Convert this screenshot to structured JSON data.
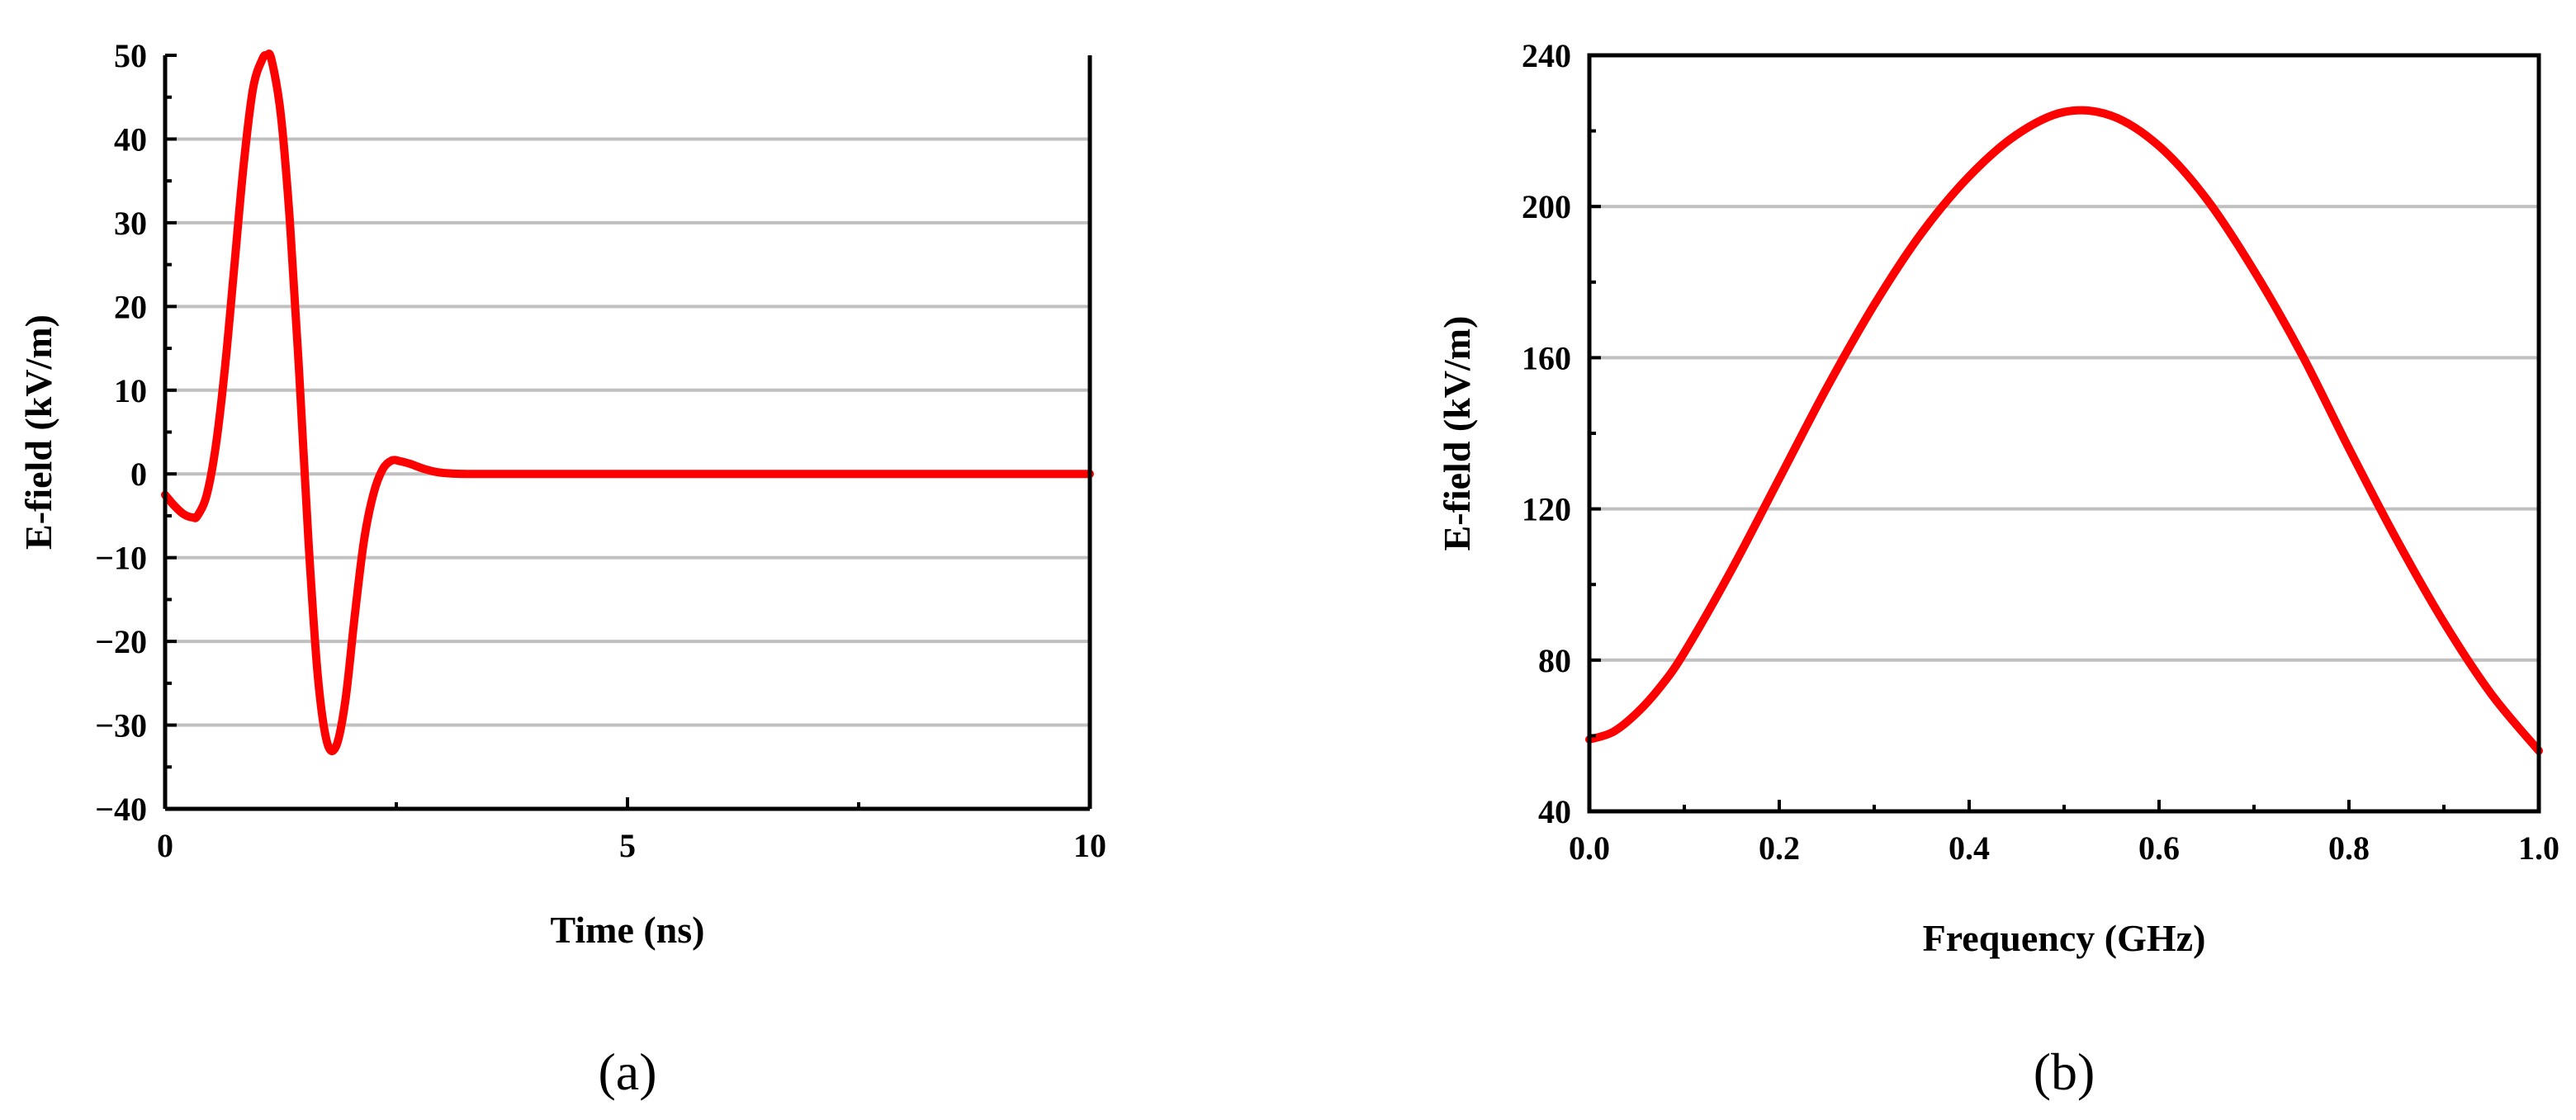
{
  "colors": {
    "curve": "#ff0000",
    "grid": "#c0c0c0",
    "axis": "#000000"
  },
  "chart_data": [
    {
      "type": "line",
      "panel_label": "(a)",
      "xlabel": "Time (ns)",
      "ylabel": "E-field (kV/m)",
      "xlim": [
        0,
        10
      ],
      "ylim": [
        -40,
        50
      ],
      "x_ticks": [
        0,
        5,
        10
      ],
      "x_tick_labels": [
        "0",
        "5",
        "10"
      ],
      "y_ticks": [
        -40,
        -30,
        -20,
        -10,
        0,
        10,
        20,
        30,
        40,
        50
      ],
      "y_tick_labels": [
        "−40",
        "−30",
        "−20",
        "−10",
        "0",
        "10",
        "20",
        "30",
        "40",
        "50"
      ],
      "grid": "horizontal",
      "series": [
        {
          "x": [
            0,
            0.1,
            0.2,
            0.3,
            0.35,
            0.45,
            0.55,
            0.65,
            0.75,
            0.85,
            0.95,
            1.05,
            1.1,
            1.15,
            1.25,
            1.35,
            1.45,
            1.55,
            1.65,
            1.75,
            1.85,
            1.95,
            2.05,
            2.15,
            2.25,
            2.35,
            2.45,
            2.55,
            2.65,
            2.8,
            2.95,
            3.1,
            3.3,
            3.6,
            4,
            5,
            6,
            7,
            8,
            9,
            10
          ],
          "y": [
            -2.5,
            -3.8,
            -4.8,
            -5.2,
            -5.0,
            -2.5,
            3.5,
            13,
            25,
            37,
            46,
            49.5,
            50,
            49.5,
            43,
            30,
            12,
            -8,
            -24,
            -32,
            -32.5,
            -27,
            -17,
            -8,
            -2.5,
            0.5,
            1.6,
            1.5,
            1.2,
            0.6,
            0.2,
            0.05,
            0,
            0,
            0,
            0,
            0,
            0,
            0,
            0,
            0
          ]
        }
      ]
    },
    {
      "type": "line",
      "panel_label": "(b)",
      "xlabel": "Frequency (GHz)",
      "ylabel": "E-field (kV/m)",
      "xlim": [
        0,
        1
      ],
      "ylim": [
        40,
        240
      ],
      "x_ticks": [
        0,
        0.2,
        0.4,
        0.6,
        0.8,
        1.0
      ],
      "x_tick_labels": [
        "0.0",
        "0.2",
        "0.4",
        "0.6",
        "0.8",
        "1.0"
      ],
      "y_ticks": [
        40,
        80,
        120,
        160,
        200,
        240
      ],
      "y_tick_labels": [
        "40",
        "80",
        "120",
        "160",
        "200",
        "240"
      ],
      "grid": "horizontal",
      "series": [
        {
          "x": [
            0,
            0.025,
            0.05,
            0.075,
            0.1,
            0.15,
            0.2,
            0.25,
            0.3,
            0.35,
            0.4,
            0.45,
            0.5,
            0.55,
            0.6,
            0.65,
            0.7,
            0.75,
            0.8,
            0.85,
            0.9,
            0.95,
            1.0
          ],
          "y": [
            59,
            61,
            66,
            73,
            82,
            104,
            128,
            152,
            174,
            193,
            208,
            219,
            225,
            224,
            216,
            202,
            183,
            161,
            136,
            112,
            90,
            71,
            56
          ]
        }
      ]
    }
  ]
}
